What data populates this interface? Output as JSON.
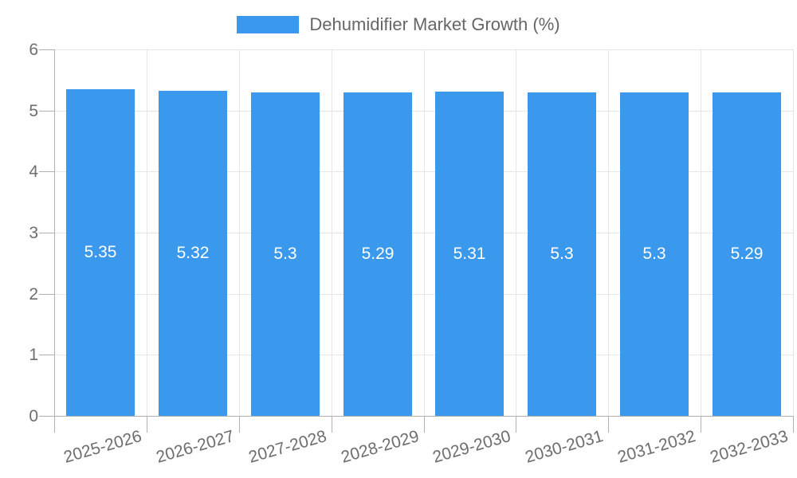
{
  "chart_data": {
    "type": "bar",
    "title": "",
    "legend": "Dehumidifier Market Growth (%)",
    "legend_position": "top",
    "categories": [
      "2025-2026",
      "2026-2027",
      "2027-2028",
      "2028-2029",
      "2029-2030",
      "2030-2031",
      "2031-2032",
      "2032-2033"
    ],
    "series": [
      {
        "name": "Dehumidifier Market Growth (%)",
        "values": [
          5.35,
          5.32,
          5.3,
          5.29,
          5.31,
          5.3,
          5.3,
          5.29
        ]
      }
    ],
    "xlabel": "",
    "ylabel": "",
    "ylim": [
      0,
      6
    ],
    "ytick_step": 1,
    "yticks": [
      "0",
      "1",
      "2",
      "3",
      "4",
      "5",
      "6"
    ],
    "grid": true,
    "colors": {
      "bar": "#3a99ec",
      "grid_light": "#e6e6e6",
      "axis_line": "#b1b1b1",
      "axis_text": "#6e6e6e",
      "legend_text": "#666666",
      "data_label": "#ffffff",
      "background": "#ffffff"
    }
  }
}
